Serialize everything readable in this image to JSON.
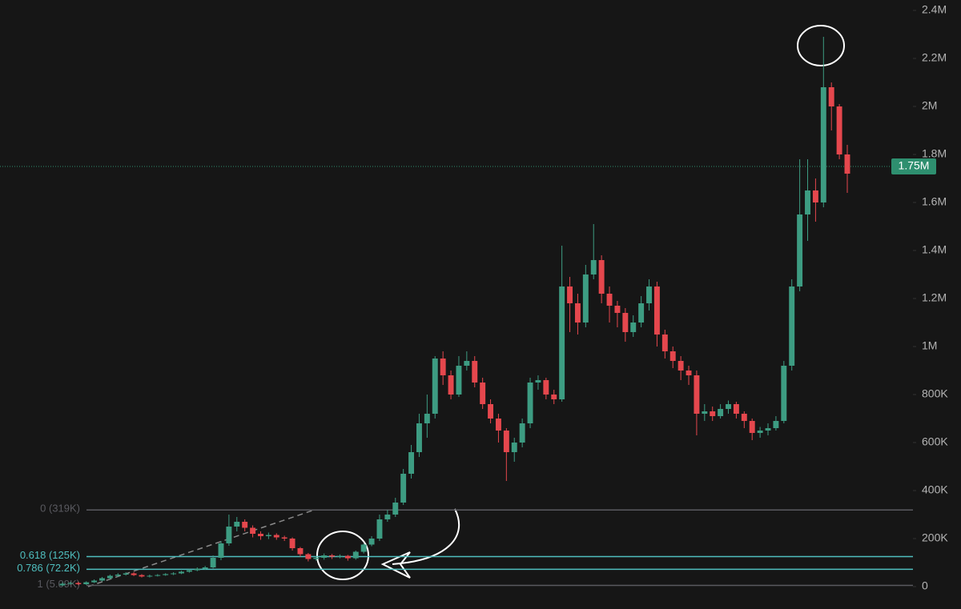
{
  "chart_data": {
    "type": "candlestick",
    "series": [
      {
        "up_color": "#3d9c82",
        "down_color": "#e5474d",
        "open": [
          5000,
          12000,
          15000,
          10000,
          18000,
          25000,
          35000,
          45000,
          50000,
          55000,
          48000,
          42000,
          45000,
          48000,
          52000,
          55000,
          62000,
          68000,
          75000,
          80000,
          120000,
          180000,
          250000,
          270000,
          245000,
          220000,
          210000,
          215000,
          205000,
          200000,
          160000,
          135000,
          115000,
          120000,
          130000,
          125000,
          128000,
          118000,
          145000,
          175000,
          200000,
          280000,
          300000,
          350000,
          470000,
          560000,
          680000,
          720000,
          950000,
          880000,
          800000,
          920000,
          940000,
          850000,
          760000,
          700000,
          650000,
          560000,
          600000,
          680000,
          850000,
          860000,
          800000,
          780000,
          1250000,
          1180000,
          1100000,
          1300000,
          1360000,
          1220000,
          1170000,
          1140000,
          1060000,
          1100000,
          1180000,
          1250000,
          1050000,
          980000,
          940000,
          900000,
          880000,
          720000,
          730000,
          710000,
          740000,
          760000,
          720000,
          690000,
          640000,
          650000,
          660000,
          690000,
          920000,
          1250000,
          1550000,
          1650000,
          1600000,
          2080000,
          2000000,
          1800000
        ],
        "high": [
          18000,
          20000,
          20000,
          22000,
          30000,
          40000,
          50000,
          56000,
          60000,
          60000,
          52000,
          50000,
          52000,
          56000,
          60000,
          66000,
          72000,
          80000,
          86000,
          130000,
          190000,
          300000,
          290000,
          280000,
          255000,
          230000,
          225000,
          222000,
          212000,
          205000,
          165000,
          140000,
          128000,
          138000,
          136000,
          134000,
          132000,
          150000,
          180000,
          210000,
          300000,
          320000,
          370000,
          490000,
          590000,
          720000,
          800000,
          960000,
          980000,
          900000,
          960000,
          980000,
          960000,
          870000,
          780000,
          720000,
          660000,
          620000,
          700000,
          870000,
          880000,
          870000,
          820000,
          1420000,
          1290000,
          1220000,
          1340000,
          1510000,
          1380000,
          1250000,
          1190000,
          1160000,
          1130000,
          1210000,
          1280000,
          1270000,
          1070000,
          1000000,
          960000,
          920000,
          900000,
          760000,
          750000,
          760000,
          775000,
          770000,
          730000,
          700000,
          665000,
          680000,
          710000,
          940000,
          1280000,
          1780000,
          1780000,
          1700000,
          2290000,
          2100000,
          2010000,
          1840000
        ],
        "low": [
          2000,
          8000,
          6000,
          7000,
          15000,
          22000,
          30000,
          40000,
          46000,
          44000,
          38000,
          38000,
          42000,
          45000,
          48000,
          52000,
          58000,
          64000,
          70000,
          76000,
          110000,
          170000,
          230000,
          230000,
          205000,
          195000,
          198000,
          195000,
          190000,
          150000,
          125000,
          105000,
          108000,
          112000,
          115000,
          118000,
          108000,
          112000,
          138000,
          168000,
          190000,
          270000,
          290000,
          340000,
          450000,
          540000,
          620000,
          700000,
          840000,
          780000,
          790000,
          900000,
          830000,
          740000,
          680000,
          600000,
          440000,
          520000,
          580000,
          660000,
          820000,
          780000,
          760000,
          770000,
          1060000,
          1050000,
          1080000,
          1280000,
          1180000,
          1100000,
          1080000,
          1020000,
          1040000,
          1080000,
          1150000,
          1000000,
          950000,
          910000,
          860000,
          840000,
          630000,
          690000,
          690000,
          700000,
          720000,
          700000,
          660000,
          610000,
          620000,
          630000,
          650000,
          680000,
          900000,
          1230000,
          1440000,
          1520000,
          1580000,
          1900000,
          1780000,
          1640000
        ],
        "close": [
          12000,
          15000,
          10000,
          18000,
          25000,
          35000,
          45000,
          50000,
          55000,
          48000,
          42000,
          45000,
          48000,
          52000,
          55000,
          62000,
          68000,
          75000,
          80000,
          120000,
          180000,
          250000,
          270000,
          245000,
          220000,
          210000,
          215000,
          205000,
          200000,
          160000,
          135000,
          115000,
          120000,
          130000,
          125000,
          128000,
          118000,
          145000,
          175000,
          200000,
          280000,
          300000,
          350000,
          470000,
          560000,
          680000,
          720000,
          950000,
          880000,
          800000,
          920000,
          940000,
          850000,
          760000,
          700000,
          650000,
          560000,
          600000,
          680000,
          850000,
          860000,
          800000,
          780000,
          1250000,
          1180000,
          1100000,
          1300000,
          1360000,
          1220000,
          1170000,
          1140000,
          1060000,
          1100000,
          1180000,
          1250000,
          1050000,
          980000,
          940000,
          900000,
          880000,
          720000,
          730000,
          710000,
          740000,
          760000,
          720000,
          690000,
          640000,
          650000,
          660000,
          690000,
          920000,
          1250000,
          1550000,
          1650000,
          1600000,
          2080000,
          2000000,
          1800000,
          1720000
        ]
      }
    ],
    "ylim": [
      0,
      2400000
    ],
    "yticks": [
      0,
      {
        "value": 200000,
        "label": "200K"
      },
      {
        "value": 400000,
        "label": "400K"
      },
      {
        "value": 600000,
        "label": "600K"
      },
      {
        "value": 800000,
        "label": "800K"
      },
      {
        "value": 1000000,
        "label": "1M"
      },
      {
        "value": 1200000,
        "label": "1.2M"
      },
      {
        "value": 1400000,
        "label": "1.4M"
      },
      {
        "value": 1600000,
        "label": "1.6M"
      },
      {
        "value": 1800000,
        "label": "1.8M"
      },
      {
        "value": 2000000,
        "label": "2M"
      },
      {
        "value": 2200000,
        "label": "2.2M"
      },
      {
        "value": 2400000,
        "label": "2.4M"
      }
    ],
    "fib_levels": [
      {
        "value": 319000,
        "label": "0 (319K)",
        "color": "#5a5a60"
      },
      {
        "value": 125000,
        "label": "0.618 (125K)",
        "color": "#4fbfbf"
      },
      {
        "value": 72200,
        "label": "0.786 (72.2K)",
        "color": "#4fbfbf"
      },
      {
        "value": 5090,
        "label": "1 (5.09K)",
        "color": "#5a5a60"
      }
    ],
    "last_price": {
      "value": 1750000,
      "label": "1.75M",
      "color": "#2e8f6f"
    }
  }
}
